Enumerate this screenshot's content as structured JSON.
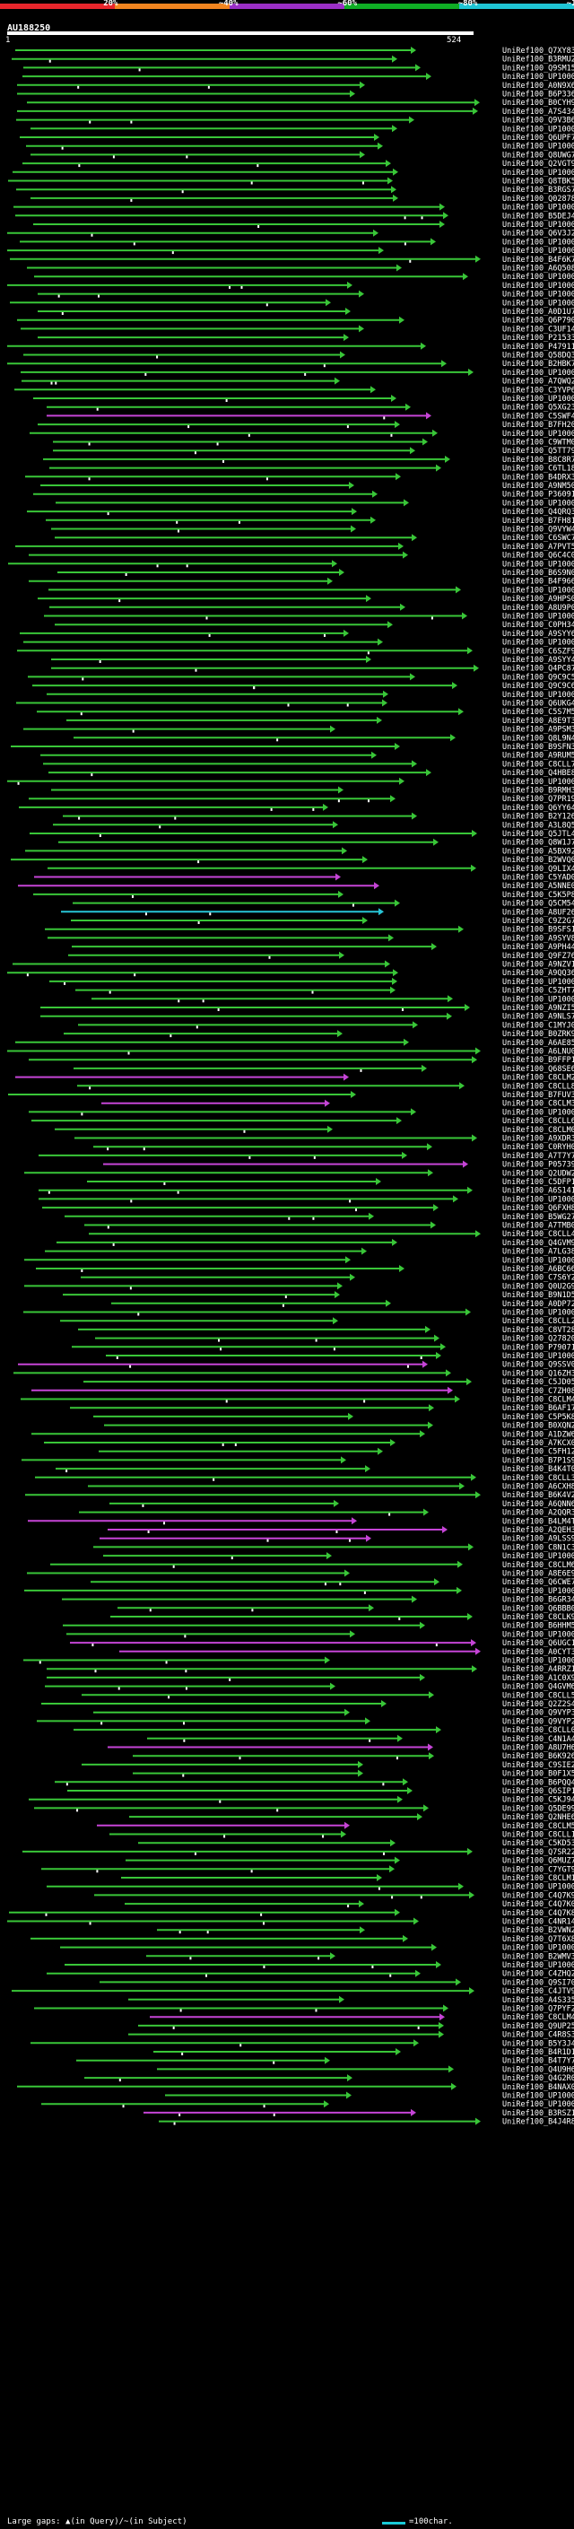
{
  "query_id": "AU188250",
  "query_start": "1",
  "query_end": "524",
  "scale_labels": [
    "20%",
    "~40%",
    "~60%",
    "~80%",
    "~100%"
  ],
  "scale_colors": [
    "#e8262c",
    "#f2851f",
    "#9a2fc5",
    "#0fae25",
    "#1fc4d4"
  ],
  "hit_colors": {
    "green": "#39c638",
    "magenta": "#c544d6",
    "cyan": "#27c5d6"
  },
  "legend": {
    "gaps": "Large gaps: ▲(in Query)/~(in Subject)",
    "scale": "=100char."
  },
  "hits": [
    "UniRef100_Q7XY83",
    "UniRef100_B3RMU2",
    "UniRef100_Q9SM15",
    "UniRef100_UP1000..",
    "UniRef100_A0N9X6",
    "UniRef100_B6P336",
    "UniRef100_B0CYH9",
    "UniRef100_A7S434",
    "UniRef100_Q9V3B6",
    "UniRef100_UP1000..",
    "UniRef100_Q6UPF7",
    "UniRef100_UP1000..",
    "UniRef100_Q8UWG7",
    "UniRef100_Q2VGT9",
    "UniRef100_UP1000..",
    "UniRef100_Q8TBK5",
    "UniRef100_B3RGS7",
    "UniRef100_Q02878",
    "UniRef100_UP1000..",
    "UniRef100_B5DEJ4",
    "UniRef100_UP1000..",
    "UniRef100_Q6V3J2",
    "UniRef100_UP1000..",
    "UniRef100_UP1000..",
    "UniRef100_B4F6K7",
    "UniRef100_A6Q508",
    "UniRef100_UP1000..",
    "UniRef100_UP1000..",
    "UniRef100_UP1000..",
    "UniRef100_UP1000..",
    "UniRef100_A0D1U7",
    "UniRef100_Q6P790",
    "UniRef100_C3UF14",
    "UniRef100_P21533",
    "UniRef100_P47911",
    "UniRef100_Q58DQ3",
    "UniRef100_B2HBK7",
    "UniRef100_UP1000..",
    "UniRef100_A7QWQ2",
    "UniRef100_C3YVP6",
    "UniRef100_UP1000..",
    "UniRef100_Q5XG23",
    "UniRef100_C5SWF4",
    "UniRef100_B7FH20",
    "UniRef100_UP1000..",
    "UniRef100_C9WTM0",
    "UniRef100_Q5TT79",
    "UniRef100_B8C8R7",
    "UniRef100_C6TL18",
    "UniRef100_B4DRX3",
    "UniRef100_A9NM50",
    "UniRef100_P36091",
    "UniRef100_UP1000..",
    "UniRef100_Q4QRQ3",
    "UniRef100_B7FH81",
    "UniRef100_Q9VYW4",
    "UniRef100_C6SWC7",
    "UniRef100_A7PVT5",
    "UniRef100_Q6C4C0",
    "UniRef100_UP1000..",
    "UniRef100_B6S9N0",
    "UniRef100_B4F966",
    "UniRef100_UP1000..",
    "UniRef100_A9HPS0",
    "UniRef100_A8U9P0",
    "UniRef100_UP1000..",
    "UniRef100_C0PH34",
    "UniRef100_A9SYY6",
    "UniRef100_UP1000..",
    "UniRef100_C6SZF9",
    "UniRef100_A9SYY4",
    "UniRef100_Q4PC87",
    "UniRef100_Q9C9C5",
    "UniRef100_Q9C9C6",
    "UniRef100_UP1000..",
    "UniRef100_Q6UKG4",
    "UniRef100_C5S7M5",
    "UniRef100_A8E9T3",
    "UniRef100_A9PSM3",
    "UniRef100_Q8L9N4",
    "UniRef100_B9SFN3",
    "UniRef100_A9RUM5",
    "UniRef100_C8CLL7",
    "UniRef100_Q4HBE8",
    "UniRef100_UP1000..",
    "UniRef100_B9RMH3",
    "UniRef100_Q7PR19",
    "UniRef100_Q6YY64",
    "UniRef100_B2Y126",
    "UniRef100_A3L8Q5",
    "UniRef100_Q5JTL4",
    "UniRef100_Q8W1J7",
    "UniRef100_A5BX92",
    "UniRef100_B2WVQ0",
    "UniRef100_Q9LIX4",
    "UniRef100_C5YAD0",
    "UniRef100_A5NNE0",
    "UniRef100_C5K5P8",
    "UniRef100_Q5CM54",
    "UniRef100_A8UF26",
    "UniRef100_C9Z2G7",
    "UniRef100_B9SFS1",
    "UniRef100_A9SYV8",
    "UniRef100_A9PH44",
    "UniRef100_Q9FZ76",
    "UniRef100_A9NZV1",
    "UniRef100_A9QQ36",
    "UniRef100_UP1000..",
    "UniRef100_C5ZHT7",
    "UniRef100_UP1000..",
    "UniRef100_A9NZI5",
    "UniRef100_A9NLS7",
    "UniRef100_C1MYJ0",
    "UniRef100_B0ZRK9",
    "UniRef100_A6AE85",
    "UniRef100_A6LNU0",
    "UniRef100_B9FFP1",
    "UniRef100_Q68SE6",
    "UniRef100_C8CLM2",
    "UniRef100_C8CLL8",
    "UniRef100_B7FUV3",
    "UniRef100_C8CLM3",
    "UniRef100_UP1000..",
    "UniRef100_C8CLL6",
    "UniRef100_C8CLM0",
    "UniRef100_A9XDR3",
    "UniRef100_C0RYH0",
    "UniRef100_A7T7Y7",
    "UniRef100_P05739",
    "UniRef100_Q2UDW2",
    "UniRef100_C5DFP1",
    "UniRef100_A6S141",
    "UniRef100_UP1000..",
    "UniRef100_Q6FXH8",
    "UniRef100_B5WG27",
    "UniRef100_A7TMB0",
    "UniRef100_C8CLL4",
    "UniRef100_Q4GVM9",
    "UniRef100_A7LG38",
    "UniRef100_UP1000..",
    "UniRef100_A6BC66",
    "UniRef100_C7S6Y2",
    "UniRef100_Q0U2G9",
    "UniRef100_B9N1D5",
    "UniRef100_A0DP72",
    "UniRef100_UP1000..",
    "UniRef100_C8CLL2",
    "UniRef100_C8VT28",
    "UniRef100_Q27820",
    "UniRef100_P79071",
    "UniRef100_UP1000..",
    "UniRef100_Q9SSV0",
    "UniRef100_Q16ZH3",
    "UniRef100_C5JD05",
    "UniRef100_C7ZH08",
    "UniRef100_C8CLM4",
    "UniRef100_B6AF17",
    "UniRef100_C5P5K8",
    "UniRef100_B0XQN2",
    "UniRef100_A1DZW6",
    "UniRef100_A7KCX0",
    "UniRef100_C5FH12",
    "UniRef100_B7P1S9",
    "UniRef100_B4K4T0",
    "UniRef100_C8CLL3",
    "UniRef100_A6CXH8",
    "UniRef100_B6K4V2",
    "UniRef100_A6QNN6",
    "UniRef100_A2QQR3",
    "UniRef100_B4LM4T",
    "UniRef100_A2QEH3",
    "UniRef100_A9LSS9",
    "UniRef100_C8N1C3",
    "UniRef100_UP1000..",
    "UniRef100_C8CLM6",
    "UniRef100_A8E6E9",
    "UniRef100_Q6CWE7",
    "UniRef100_UP1000..",
    "UniRef100_B6GR34",
    "UniRef100_Q6BBB0",
    "UniRef100_C8CLK9",
    "UniRef100_B6HHM5",
    "UniRef100_UP1000..",
    "UniRef100_Q6UGC1",
    "UniRef100_A0CYT3",
    "UniRef100_UP1000..",
    "UniRef100_A4RRZ1",
    "UniRef100_A1C0X9",
    "UniRef100_Q4GVM6",
    "UniRef100_C8CLL5",
    "UniRef100_Q2Z2S4",
    "UniRef100_Q9VYP3",
    "UniRef100_Q9VYP2",
    "UniRef100_C8CLL0",
    "UniRef100_C4N1A4",
    "UniRef100_A8U7H6",
    "UniRef100_B6K926",
    "UniRef100_C9SIE2",
    "UniRef100_B0F1X5",
    "UniRef100_B6PQQ4",
    "UniRef100_Q6SIP1",
    "UniRef100_C5KJ94",
    "UniRef100_Q5DE99",
    "UniRef100_Q2NHE6",
    "UniRef100_C8CLM5",
    "UniRef100_C8CLL1",
    "UniRef100_C5KD53",
    "UniRef100_Q7SR22",
    "UniRef100_Q6MUZ7",
    "UniRef100_C7YGT9",
    "UniRef100_C8CLM1",
    "UniRef100_UP1000..",
    "UniRef100_C4Q7K9",
    "UniRef100_C4Q7K0",
    "UniRef100_C4Q7K8",
    "UniRef100_C4NR14",
    "UniRef100_B2VWN2",
    "UniRef100_Q7T6X8",
    "UniRef100_UP1000..",
    "UniRef100_B2WMV3",
    "UniRef100_UP1000..",
    "UniRef100_C4ZHQ2",
    "UniRef100_Q9SI70",
    "UniRef100_C4JTV9",
    "UniRef100_A4S335",
    "UniRef100_Q7PYF2",
    "UniRef100_C8CLM4",
    "UniRef100_Q9UP25",
    "UniRef100_C4R8S3",
    "UniRef100_B5Y3J4",
    "UniRef100_B4R1D1",
    "UniRef100_B4T7Y7",
    "UniRef100_Q4U9H6",
    "UniRef100_Q4G2R0",
    "UniRef100_B4NAX0",
    "UniRef100_UP1000..",
    "UniRef100_UP1000..",
    "UniRef100_B3RSZ1",
    "UniRef100_B4J4R8"
  ]
}
